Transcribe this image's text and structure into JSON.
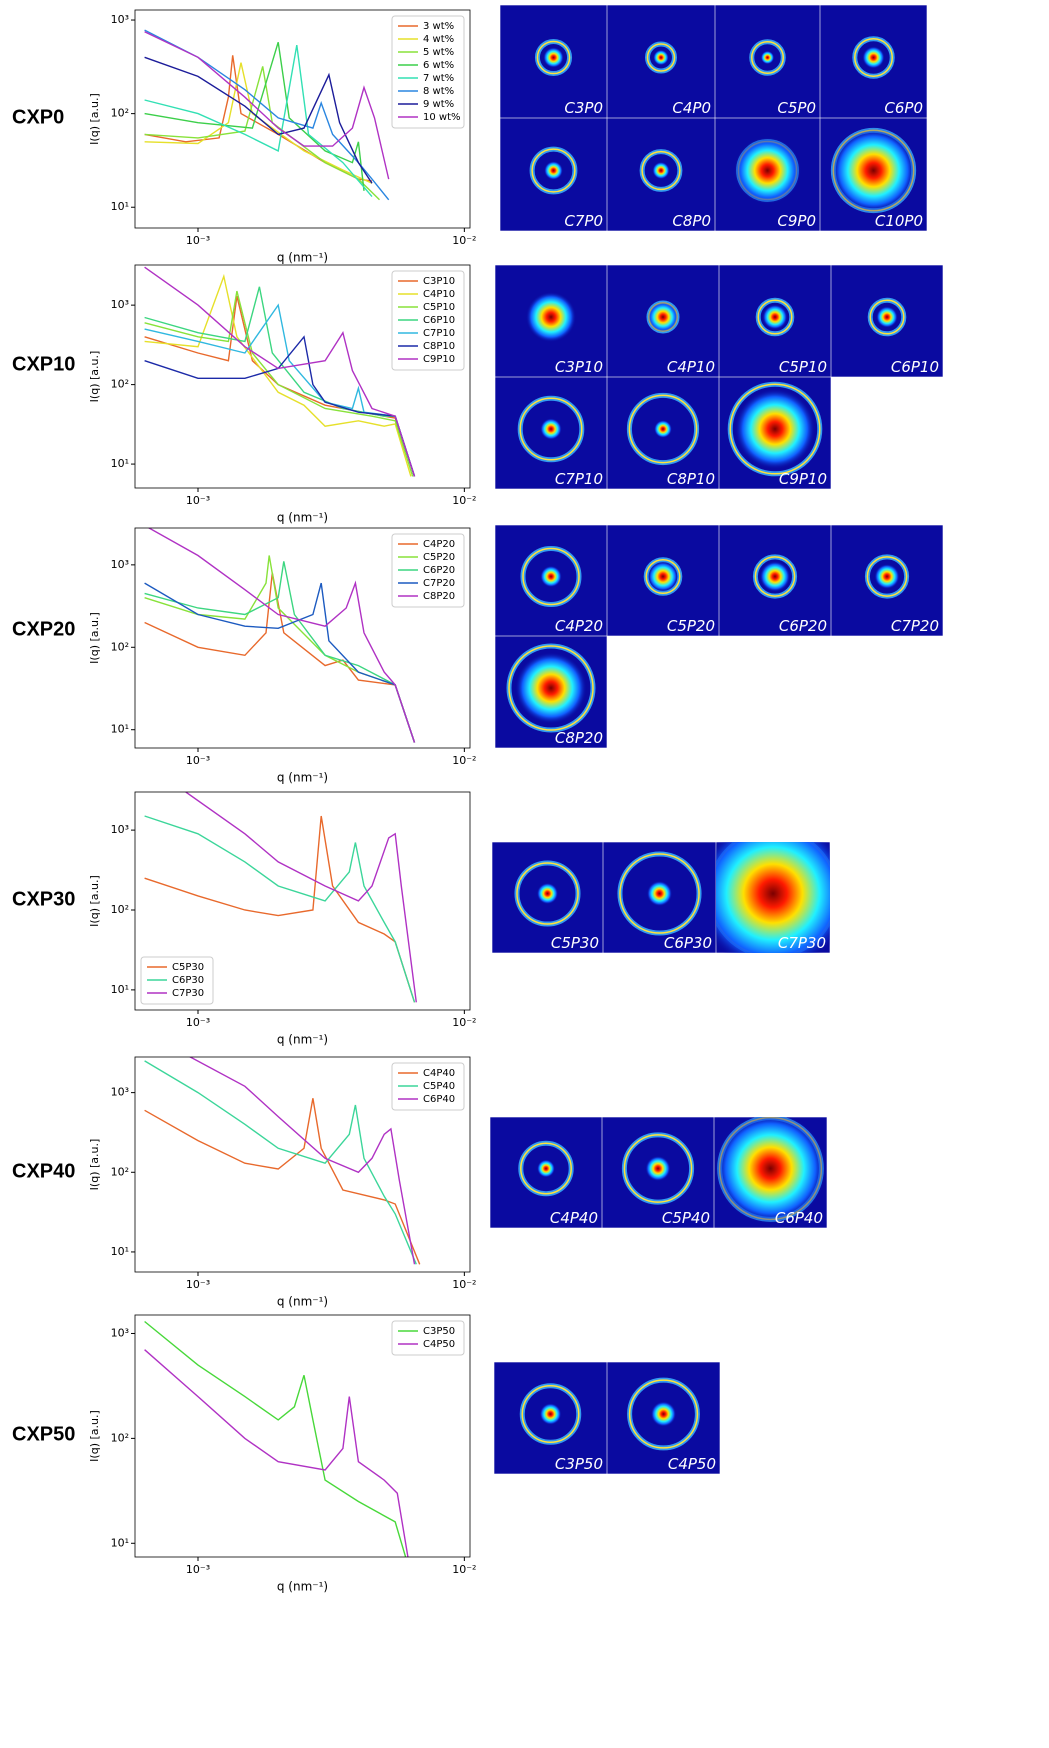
{
  "chart_data": [
    {
      "type": "line",
      "xlabel": "q (nm⁻¹)",
      "ylabel": "I(q) [a.u.]",
      "xscale": "log",
      "yscale": "log",
      "legend": "upper right",
      "xlim": [
        0.00058,
        0.0105
      ],
      "ylim": [
        6,
        1280
      ],
      "xticks": [
        {
          "value": 0.001,
          "label": "10⁻³"
        },
        {
          "value": 0.01,
          "label": "10⁻²"
        }
      ],
      "yticks": [
        {
          "value": 10,
          "label": "10¹"
        },
        {
          "value": 100,
          "label": "10²"
        },
        {
          "value": 1000,
          "label": "10³"
        }
      ],
      "series": [
        {
          "name": "3 wt%",
          "color": "#e8692c",
          "x": [
            0.00063,
            0.0009,
            0.0012,
            0.0013,
            0.00135,
            0.00145,
            0.002,
            0.003,
            0.004,
            0.0045
          ],
          "values": [
            60,
            50,
            55,
            150,
            420,
            100,
            60,
            30,
            20,
            19
          ]
        },
        {
          "name": "4 wt%",
          "color": "#e6e02a",
          "x": [
            0.00063,
            0.001,
            0.0013,
            0.00145,
            0.0016,
            0.0025,
            0.0035,
            0.0045
          ],
          "values": [
            50,
            48,
            80,
            350,
            100,
            40,
            25,
            18
          ]
        },
        {
          "name": "5 wt%",
          "color": "#88e23a",
          "x": [
            0.00063,
            0.001,
            0.0015,
            0.00175,
            0.0019,
            0.003,
            0.004,
            0.0048
          ],
          "values": [
            60,
            55,
            65,
            320,
            80,
            30,
            20,
            12
          ]
        },
        {
          "name": "6 wt%",
          "color": "#3ccf4a",
          "x": [
            0.00063,
            0.001,
            0.0016,
            0.002,
            0.0022,
            0.003,
            0.0038,
            0.004,
            0.0042
          ],
          "values": [
            100,
            80,
            70,
            580,
            90,
            40,
            30,
            50,
            15
          ]
        },
        {
          "name": "7 wt%",
          "color": "#32e0b4",
          "x": [
            0.00063,
            0.001,
            0.0015,
            0.002,
            0.00235,
            0.0026,
            0.0035,
            0.0045
          ],
          "values": [
            140,
            100,
            60,
            40,
            540,
            60,
            30,
            13
          ]
        },
        {
          "name": "8 wt%",
          "color": "#2a86e0",
          "x": [
            0.00063,
            0.001,
            0.0015,
            0.002,
            0.0027,
            0.0029,
            0.0032,
            0.004,
            0.0045,
            0.0052
          ],
          "values": [
            780,
            400,
            180,
            90,
            70,
            130,
            60,
            30,
            20,
            12
          ]
        },
        {
          "name": "9 wt%",
          "color": "#1c1c9a",
          "x": [
            0.00063,
            0.001,
            0.0015,
            0.002,
            0.0025,
            0.0031,
            0.0034,
            0.004,
            0.0045
          ],
          "values": [
            400,
            250,
            120,
            60,
            70,
            260,
            80,
            30,
            18
          ]
        },
        {
          "name": "10 wt%",
          "color": "#b032c4",
          "x": [
            0.00063,
            0.001,
            0.0015,
            0.002,
            0.0025,
            0.0032,
            0.0038,
            0.0042,
            0.0046,
            0.0052
          ],
          "values": [
            750,
            400,
            150,
            70,
            45,
            45,
            70,
            190,
            90,
            20
          ]
        }
      ]
    },
    {
      "type": "line",
      "xlabel": "q (nm⁻¹)",
      "ylabel": "I(q) [a.u.]",
      "xscale": "log",
      "yscale": "log",
      "legend": "upper right",
      "xlim": [
        0.00058,
        0.0105
      ],
      "ylim": [
        5,
        3200
      ],
      "xticks": [
        {
          "value": 0.001,
          "label": "10⁻³"
        },
        {
          "value": 0.01,
          "label": "10⁻²"
        }
      ],
      "yticks": [
        {
          "value": 10,
          "label": "10¹"
        },
        {
          "value": 100,
          "label": "10²"
        },
        {
          "value": 1000,
          "label": "10³"
        }
      ],
      "series": [
        {
          "name": "C3P10",
          "color": "#e8692c",
          "x": [
            0.00063,
            0.001,
            0.0013,
            0.0014,
            0.0016,
            0.002,
            0.003,
            0.005,
            0.0055,
            0.0065
          ],
          "values": [
            400,
            250,
            200,
            1300,
            200,
            100,
            55,
            40,
            38,
            7
          ]
        },
        {
          "name": "C4P10",
          "color": "#e6e02a",
          "x": [
            0.00063,
            0.001,
            0.00125,
            0.0014,
            0.002,
            0.0025,
            0.003,
            0.004,
            0.005,
            0.0055,
            0.0063
          ],
          "values": [
            350,
            300,
            2300,
            400,
            80,
            55,
            30,
            35,
            30,
            32,
            7
          ]
        },
        {
          "name": "C5P10",
          "color": "#88e23a",
          "x": [
            0.00063,
            0.001,
            0.0013,
            0.0014,
            0.0016,
            0.002,
            0.003,
            0.0045,
            0.0055,
            0.0064
          ],
          "values": [
            600,
            400,
            350,
            1500,
            250,
            100,
            50,
            40,
            35,
            7
          ]
        },
        {
          "name": "C6P10",
          "color": "#3cd680",
          "x": [
            0.00063,
            0.001,
            0.0015,
            0.0017,
            0.0019,
            0.0025,
            0.0035,
            0.005,
            0.0055,
            0.0065
          ],
          "values": [
            700,
            450,
            350,
            1700,
            250,
            80,
            50,
            40,
            40,
            7
          ]
        },
        {
          "name": "C7P10",
          "color": "#30b8e0",
          "x": [
            0.00063,
            0.001,
            0.0015,
            0.002,
            0.0022,
            0.003,
            0.0038,
            0.004,
            0.0042,
            0.0055,
            0.0065
          ],
          "values": [
            500,
            350,
            250,
            1000,
            200,
            60,
            50,
            90,
            45,
            40,
            7
          ]
        },
        {
          "name": "C8P10",
          "color": "#1c2aa8",
          "x": [
            0.00063,
            0.001,
            0.0015,
            0.002,
            0.0025,
            0.0027,
            0.003,
            0.004,
            0.0055,
            0.0065
          ],
          "values": [
            200,
            120,
            120,
            160,
            400,
            100,
            60,
            45,
            40,
            7
          ]
        },
        {
          "name": "C9P10",
          "color": "#b032c4",
          "x": [
            0.00063,
            0.001,
            0.0015,
            0.002,
            0.003,
            0.0035,
            0.0038,
            0.0045,
            0.0055,
            0.0065
          ],
          "values": [
            3000,
            1000,
            300,
            160,
            200,
            450,
            150,
            50,
            40,
            7
          ]
        }
      ]
    },
    {
      "type": "line",
      "xlabel": "q (nm⁻¹)",
      "ylabel": "I(q) [a.u.]",
      "xscale": "log",
      "yscale": "log",
      "legend": "upper right",
      "xlim": [
        0.00058,
        0.0105
      ],
      "ylim": [
        6,
        2800
      ],
      "xticks": [
        {
          "value": 0.001,
          "label": "10⁻³"
        },
        {
          "value": 0.01,
          "label": "10⁻²"
        }
      ],
      "yticks": [
        {
          "value": 10,
          "label": "10¹"
        },
        {
          "value": 100,
          "label": "10²"
        },
        {
          "value": 1000,
          "label": "10³"
        }
      ],
      "series": [
        {
          "name": "C4P20",
          "color": "#e8692c",
          "x": [
            0.00063,
            0.001,
            0.0015,
            0.0018,
            0.0019,
            0.0021,
            0.003,
            0.0035,
            0.004,
            0.0055,
            0.0065
          ],
          "values": [
            200,
            100,
            80,
            150,
            800,
            150,
            60,
            70,
            40,
            35,
            7
          ]
        },
        {
          "name": "C5P20",
          "color": "#88e23a",
          "x": [
            0.00063,
            0.001,
            0.0015,
            0.0018,
            0.00185,
            0.002,
            0.003,
            0.004,
            0.0055,
            0.0065
          ],
          "values": [
            400,
            250,
            220,
            600,
            1300,
            300,
            80,
            50,
            35,
            7
          ]
        },
        {
          "name": "C6P20",
          "color": "#3cd680",
          "x": [
            0.00063,
            0.001,
            0.0015,
            0.002,
            0.0021,
            0.0023,
            0.003,
            0.004,
            0.0055,
            0.0065
          ],
          "values": [
            450,
            300,
            250,
            400,
            1100,
            250,
            80,
            60,
            35,
            7
          ]
        },
        {
          "name": "C7P20",
          "color": "#1c5ac0",
          "x": [
            0.00063,
            0.001,
            0.0015,
            0.002,
            0.0027,
            0.0029,
            0.0031,
            0.004,
            0.0055,
            0.0065
          ],
          "values": [
            600,
            250,
            180,
            170,
            250,
            600,
            120,
            50,
            35,
            7
          ]
        },
        {
          "name": "C8P20",
          "color": "#b032c4",
          "x": [
            0.00063,
            0.001,
            0.0015,
            0.002,
            0.003,
            0.0036,
            0.0039,
            0.0042,
            0.005,
            0.0055,
            0.0065
          ],
          "values": [
            3000,
            1300,
            500,
            250,
            180,
            300,
            600,
            150,
            50,
            35,
            7
          ]
        }
      ]
    },
    {
      "type": "line",
      "xlabel": "q (nm⁻¹)",
      "ylabel": "I(q) [a.u.]",
      "xscale": "log",
      "yscale": "log",
      "legend": "lower left",
      "xlim": [
        0.00058,
        0.0105
      ],
      "ylim": [
        5.6,
        3000
      ],
      "xticks": [
        {
          "value": 0.001,
          "label": "10⁻³"
        },
        {
          "value": 0.01,
          "label": "10⁻²"
        }
      ],
      "yticks": [
        {
          "value": 10,
          "label": "10¹"
        },
        {
          "value": 100,
          "label": "10²"
        },
        {
          "value": 1000,
          "label": "10³"
        }
      ],
      "series": [
        {
          "name": "C5P30",
          "color": "#e8692c",
          "x": [
            0.00063,
            0.001,
            0.0015,
            0.002,
            0.0027,
            0.0029,
            0.0032,
            0.004,
            0.005,
            0.0055,
            0.0065
          ],
          "values": [
            250,
            150,
            100,
            85,
            100,
            1500,
            200,
            70,
            50,
            40,
            7
          ]
        },
        {
          "name": "C6P30",
          "color": "#3cd69a",
          "x": [
            0.00063,
            0.001,
            0.0015,
            0.002,
            0.003,
            0.0037,
            0.0039,
            0.0042,
            0.005,
            0.0055,
            0.0065
          ],
          "values": [
            1500,
            900,
            400,
            200,
            130,
            300,
            700,
            200,
            70,
            40,
            7
          ]
        },
        {
          "name": "C7P30",
          "color": "#b032c4",
          "x": [
            0.0009,
            0.0015,
            0.002,
            0.003,
            0.004,
            0.0045,
            0.0052,
            0.0055,
            0.0058,
            0.0066
          ],
          "values": [
            3000,
            900,
            400,
            200,
            130,
            200,
            800,
            900,
            200,
            7
          ]
        }
      ]
    },
    {
      "type": "line",
      "xlabel": "q (nm⁻¹)",
      "ylabel": "I(q) [a.u.]",
      "xscale": "log",
      "yscale": "log",
      "legend": "upper right",
      "xlim": [
        0.00058,
        0.0105
      ],
      "ylim": [
        5.6,
        2800
      ],
      "xticks": [
        {
          "value": 0.001,
          "label": "10⁻³"
        },
        {
          "value": 0.01,
          "label": "10⁻²"
        }
      ],
      "yticks": [
        {
          "value": 10,
          "label": "10¹"
        },
        {
          "value": 100,
          "label": "10²"
        },
        {
          "value": 1000,
          "label": "10³"
        }
      ],
      "series": [
        {
          "name": "C4P40",
          "color": "#e8692c",
          "x": [
            0.00063,
            0.001,
            0.0015,
            0.002,
            0.0025,
            0.0027,
            0.0029,
            0.0035,
            0.005,
            0.0055,
            0.0068
          ],
          "values": [
            600,
            250,
            130,
            110,
            200,
            850,
            200,
            60,
            45,
            40,
            7
          ]
        },
        {
          "name": "C5P40",
          "color": "#3cd69a",
          "x": [
            0.00063,
            0.001,
            0.0015,
            0.002,
            0.003,
            0.0037,
            0.0039,
            0.0042,
            0.005,
            0.0055,
            0.0066
          ],
          "values": [
            2500,
            1000,
            400,
            200,
            130,
            300,
            700,
            150,
            50,
            30,
            7
          ]
        },
        {
          "name": "C6P40",
          "color": "#b032c4",
          "x": [
            0.0009,
            0.0015,
            0.002,
            0.003,
            0.004,
            0.0045,
            0.005,
            0.0053,
            0.0057,
            0.0065
          ],
          "values": [
            3000,
            1200,
            500,
            150,
            100,
            150,
            300,
            350,
            80,
            7
          ]
        }
      ]
    },
    {
      "type": "line",
      "xlabel": "q (nm⁻¹)",
      "ylabel": "I(q) [a.u.]",
      "xscale": "log",
      "yscale": "log",
      "legend": "upper right",
      "xlim": [
        0.00058,
        0.0105
      ],
      "ylim": [
        7.4,
        1500
      ],
      "xticks": [
        {
          "value": 0.001,
          "label": "10⁻³"
        },
        {
          "value": 0.01,
          "label": "10⁻²"
        }
      ],
      "yticks": [
        {
          "value": 10,
          "label": "10¹"
        },
        {
          "value": 100,
          "label": "10²"
        },
        {
          "value": 1000,
          "label": "10³"
        }
      ],
      "series": [
        {
          "name": "C3P50",
          "color": "#48d83a",
          "x": [
            0.00063,
            0.001,
            0.0015,
            0.002,
            0.0023,
            0.0025,
            0.0027,
            0.003,
            0.004,
            0.0055,
            0.0063
          ],
          "values": [
            1300,
            500,
            250,
            150,
            200,
            400,
            150,
            40,
            25,
            16,
            5
          ]
        },
        {
          "name": "C4P50",
          "color": "#b032c4",
          "x": [
            0.00063,
            0.001,
            0.0015,
            0.002,
            0.003,
            0.0035,
            0.0037,
            0.004,
            0.005,
            0.0056,
            0.0063
          ],
          "values": [
            700,
            250,
            100,
            60,
            50,
            80,
            250,
            60,
            40,
            30,
            5
          ]
        }
      ]
    }
  ],
  "rows": [
    {
      "label": "CXP0",
      "patterns": [
        "C3P0",
        "C4P0",
        "C5P0",
        "C6P0",
        "C7P0",
        "C8P0",
        "C9P0",
        "C10P0"
      ]
    },
    {
      "label": "CXP10",
      "patterns": [
        "C3P10",
        "C4P10",
        "C5P10",
        "C6P10",
        "C7P10",
        "C8P10",
        "C9P10"
      ]
    },
    {
      "label": "CXP20",
      "patterns": [
        "C4P20",
        "C5P20",
        "C6P20",
        "C7P20",
        "C8P20"
      ]
    },
    {
      "label": "CXP30",
      "patterns": [
        "C5P30",
        "C6P30",
        "C7P30"
      ]
    },
    {
      "label": "CXP40",
      "patterns": [
        "C4P40",
        "C5P40",
        "C6P40"
      ]
    },
    {
      "label": "CXP50",
      "patterns": [
        "C3P50",
        "C4P50"
      ]
    }
  ]
}
